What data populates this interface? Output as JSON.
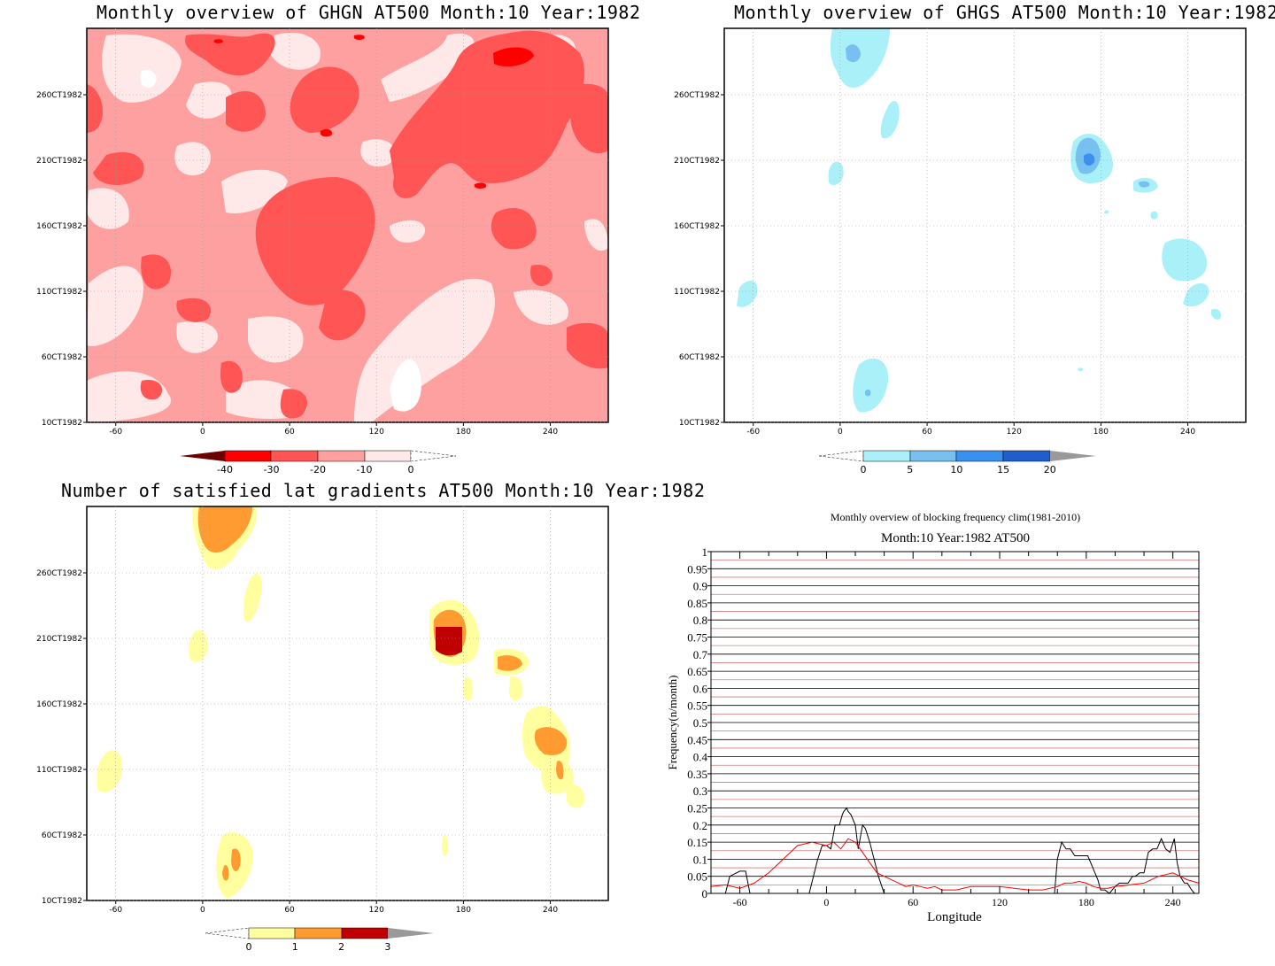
{
  "titles": {
    "ghgn": "Monthly overview of GHGN AT500 Month:10 Year:1982",
    "ghgs": "Monthly overview of GHGS AT500 Month:10 Year:1982",
    "lat": "Number of satisfied lat gradients AT500 Month:10 Year:1982"
  },
  "shared_axes": {
    "x_ticks": [
      "-60",
      "0",
      "60",
      "120",
      "180",
      "240"
    ],
    "y_ticks": [
      "10CT1982",
      "60CT1982",
      "110CT1982",
      "160CT1982",
      "210CT1982",
      "260CT1982"
    ]
  },
  "colors": {
    "ghgn": [
      "#6b0000",
      "#ff0000",
      "#ff5555",
      "#ffa0a0",
      "#ffe8e8"
    ],
    "ghgs": [
      "#aaf0f8",
      "#78c0f0",
      "#3a90ee",
      "#1f5ecc"
    ],
    "lat": [
      "#ffff9f",
      "#ff9b30",
      "#c00000"
    ]
  },
  "chart_data": [
    {
      "type": "heatmap",
      "title": "Monthly overview of GHGN AT500 Month:10 Year:1982",
      "x_ticks": [
        -60,
        0,
        60,
        120,
        180,
        240
      ],
      "y_ticks": [
        "10CT1982",
        "60CT1982",
        "110CT1982",
        "160CT1982",
        "210CT1982",
        "260CT1982"
      ],
      "colorbar": {
        "labels": [
          "-40",
          "-30",
          "-20",
          "-10",
          "0"
        ]
      }
    },
    {
      "type": "heatmap",
      "title": "Monthly overview of GHGS AT500 Month:10 Year:1982",
      "x_ticks": [
        -60,
        0,
        60,
        120,
        180,
        240
      ],
      "y_ticks": [
        "10CT1982",
        "60CT1982",
        "110CT1982",
        "160CT1982",
        "210CT1982",
        "260CT1982"
      ],
      "colorbar": {
        "labels": [
          "0",
          "5",
          "10",
          "15",
          "20"
        ]
      }
    },
    {
      "type": "heatmap",
      "title": "Number of satisfied lat gradients AT500 Month:10 Year:1982",
      "x_ticks": [
        -60,
        0,
        60,
        120,
        180,
        240
      ],
      "y_ticks": [
        "10CT1982",
        "60CT1982",
        "110CT1982",
        "160CT1982",
        "210CT1982",
        "260CT1982"
      ],
      "colorbar": {
        "labels": [
          "0",
          "1",
          "2",
          "3"
        ]
      }
    },
    {
      "type": "line",
      "title": "Monthly overview of blocking frequency clim(1981-2010)",
      "subtitle": "Month:10 Year:1982  AT500",
      "xlabel": "Longitude",
      "ylabel": "Frequency(n/month)",
      "xlim": [
        -80,
        258
      ],
      "ylim": [
        0,
        1
      ],
      "x_ticks": [
        "-60",
        "0",
        "60",
        "120",
        "180",
        "240"
      ],
      "y_ticks": [
        "0",
        "0.05",
        "0.1",
        "0.15",
        "0.2",
        "0.25",
        "0.3",
        "0.35",
        "0.4",
        "0.45",
        "0.5",
        "0.55",
        "0.6",
        "0.65",
        "0.7",
        "0.75",
        "0.8",
        "0.85",
        "0.9",
        "0.95",
        "1"
      ],
      "series": [
        {
          "color": "#000000",
          "x": [
            -80,
            -70,
            -67,
            -60,
            -56,
            -53,
            -12,
            -9,
            -6,
            -3,
            0,
            3,
            6,
            9,
            11,
            12,
            14,
            15,
            17,
            20,
            22,
            25,
            27,
            30,
            33,
            36,
            40,
            43,
            45,
            48,
            155,
            158,
            160,
            163,
            166,
            169,
            172,
            175,
            178,
            181,
            184,
            188,
            190,
            193,
            196,
            200,
            203,
            206,
            209,
            212,
            214,
            217,
            220,
            223,
            226,
            229,
            232,
            235,
            238,
            241,
            243,
            245,
            248,
            250,
            253,
            255,
            258
          ],
          "y": [
            0,
            0,
            0.05,
            0.065,
            0.065,
            0,
            0,
            0.05,
            0.1,
            0.14,
            0.14,
            0.13,
            0.2,
            0.2,
            0.23,
            0.24,
            0.25,
            0.24,
            0.23,
            0.2,
            0.13,
            0.2,
            0.19,
            0.15,
            0.1,
            0.05,
            0,
            0,
            0,
            0,
            0,
            0,
            0.1,
            0.15,
            0.13,
            0.13,
            0.11,
            0.11,
            0.11,
            0.11,
            0.08,
            0.04,
            0.01,
            0.01,
            0,
            0.02,
            0.03,
            0.03,
            0.03,
            0.05,
            0.05,
            0.06,
            0.06,
            0.12,
            0.13,
            0.13,
            0.16,
            0.13,
            0.12,
            0.16,
            0.09,
            0.05,
            0.03,
            0.03,
            0.01,
            0,
            0
          ]
        },
        {
          "color": "#ff0000",
          "x": [
            -80,
            -70,
            -60,
            -50,
            -40,
            -30,
            -20,
            -10,
            0,
            5,
            10,
            15,
            20,
            25,
            30,
            35,
            40,
            45,
            50,
            55,
            60,
            65,
            70,
            75,
            80,
            90,
            100,
            110,
            120,
            130,
            140,
            150,
            160,
            165,
            170,
            175,
            180,
            185,
            190,
            195,
            200,
            210,
            220,
            230,
            240,
            245,
            250,
            258
          ],
          "y": [
            0.02,
            0.025,
            0.015,
            0.03,
            0.06,
            0.1,
            0.14,
            0.15,
            0.14,
            0.15,
            0.13,
            0.16,
            0.15,
            0.12,
            0.09,
            0.06,
            0.05,
            0.04,
            0.03,
            0.02,
            0.025,
            0.02,
            0.015,
            0.02,
            0.01,
            0.01,
            0.02,
            0.02,
            0.02,
            0.015,
            0.01,
            0.01,
            0.02,
            0.03,
            0.03,
            0.035,
            0.03,
            0.02,
            0.015,
            0.015,
            0.02,
            0.025,
            0.03,
            0.05,
            0.06,
            0.05,
            0.04,
            0.03
          ]
        }
      ]
    }
  ]
}
